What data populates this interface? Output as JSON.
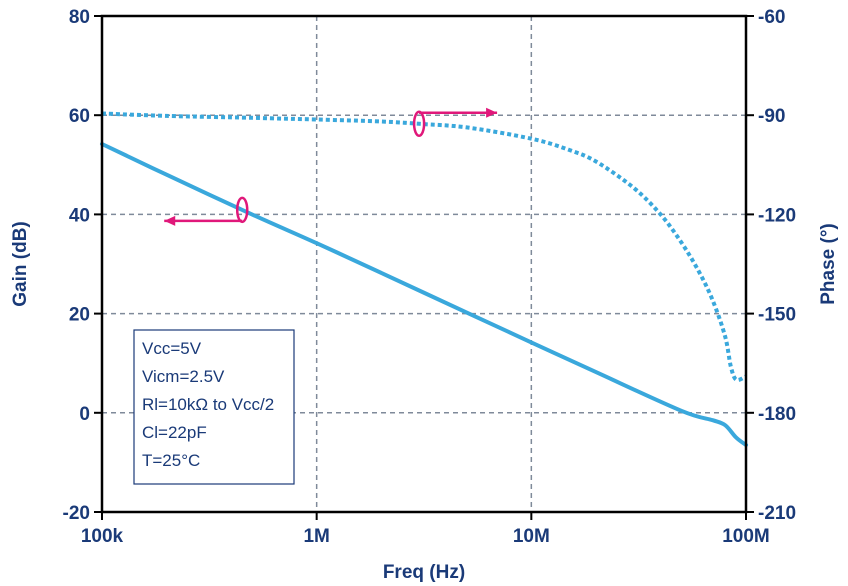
{
  "chart_data": {
    "type": "line",
    "xlabel": "Freq (Hz)",
    "ylabel": "Gain (dB)",
    "y2label": "Phase (°)",
    "x_scale": "log",
    "xlim": [
      100000,
      100000000
    ],
    "ylim": [
      -20,
      80
    ],
    "y2lim": [
      -210,
      -60
    ],
    "grid": true,
    "x_ticks": [
      {
        "value": 100000,
        "label": "100k"
      },
      {
        "value": 1000000,
        "label": "1M"
      },
      {
        "value": 10000000,
        "label": "10M"
      },
      {
        "value": 100000000,
        "label": "100M"
      }
    ],
    "y_ticks": [
      {
        "value": 80,
        "label": "80"
      },
      {
        "value": 60,
        "label": "60"
      },
      {
        "value": 40,
        "label": "40"
      },
      {
        "value": 20,
        "label": "20"
      },
      {
        "value": 0,
        "label": "0"
      },
      {
        "value": -20,
        "label": "-20"
      }
    ],
    "y2_ticks": [
      {
        "value": -60,
        "label": "-60"
      },
      {
        "value": -90,
        "label": "-90"
      },
      {
        "value": -120,
        "label": "-120"
      },
      {
        "value": -150,
        "label": "-150"
      },
      {
        "value": -180,
        "label": "-180"
      },
      {
        "value": -210,
        "label": "-210"
      }
    ],
    "series": [
      {
        "axis": "left",
        "style": "solid",
        "color": "#3aa8dc",
        "x": [
          100000,
          200000,
          500000,
          1000000,
          2000000,
          5000000,
          10000000,
          20000000,
          50000000,
          70000000,
          80000000,
          90000000,
          100000000
        ],
        "y": [
          54.2,
          48,
          40,
          34.2,
          28.2,
          20.2,
          14.2,
          8.2,
          0.4,
          -1.5,
          -2.5,
          -5,
          -6.5
        ]
      },
      {
        "axis": "right",
        "style": "dotted",
        "color": "#3aa8dc",
        "x": [
          100000,
          200000,
          500000,
          1000000,
          2000000,
          3000000,
          5000000,
          10000000,
          15000000,
          20000000,
          30000000,
          40000000,
          50000000,
          60000000,
          70000000,
          80000000,
          85000000,
          90000000,
          100000000
        ],
        "y": [
          -89.5,
          -90.2,
          -90.8,
          -91.3,
          -91.9,
          -92.6,
          -93.7,
          -97.1,
          -100.5,
          -104,
          -112,
          -120,
          -128.5,
          -137,
          -146,
          -157,
          -166,
          -170,
          -169
        ]
      }
    ],
    "annotation_box": {
      "lines": [
        "Vcc=5V",
        "Vicm=2.5V",
        "Rl=10kΩ to Vcc/2",
        "Cl=22pF",
        "T=25°C"
      ]
    },
    "markers": [
      {
        "series": 0,
        "x": 450000,
        "direction": "left",
        "color": "#e0187a"
      },
      {
        "series": 1,
        "x": 3000000,
        "direction": "right",
        "color": "#e0187a"
      }
    ],
    "colors": {
      "axis": "#000000",
      "grid": "#7f8a9a",
      "text": "#1a3a78",
      "accent": "#e0187a"
    }
  }
}
